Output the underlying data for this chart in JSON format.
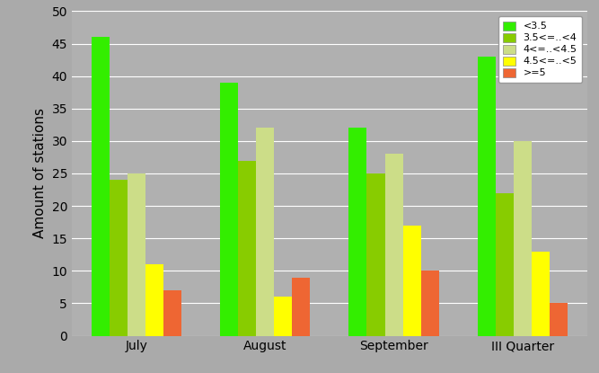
{
  "categories": [
    "July",
    "August",
    "September",
    "III Quarter"
  ],
  "series": [
    {
      "label": "<3.5",
      "color": "#33ee00",
      "values": [
        46,
        39,
        32,
        43
      ]
    },
    {
      "label": "3.5<=..<4",
      "color": "#88cc00",
      "values": [
        24,
        27,
        25,
        22
      ]
    },
    {
      "label": "4<=..<4.5",
      "color": "#ccdd88",
      "values": [
        25,
        32,
        28,
        30
      ]
    },
    {
      "label": "4.5<=..<5",
      "color": "#ffff00",
      "values": [
        11,
        6,
        17,
        13
      ]
    },
    {
      "label": ">=5",
      "color": "#ee6633",
      "values": [
        7,
        9,
        10,
        5
      ]
    }
  ],
  "ylabel": "Amount of stations",
  "ylim": [
    0,
    50
  ],
  "yticks": [
    0,
    5,
    10,
    15,
    20,
    25,
    30,
    35,
    40,
    45,
    50
  ],
  "background_color": "#aaaaaa",
  "plot_bg_color": "#b0b0b0",
  "bar_width": 0.14,
  "legend_fontsize": 8,
  "axis_label_fontsize": 11,
  "tick_fontsize": 10
}
